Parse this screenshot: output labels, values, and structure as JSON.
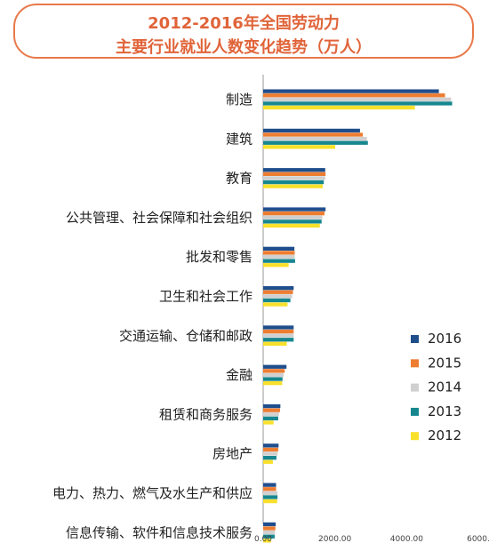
{
  "chart_data": {
    "type": "bar",
    "orientation": "horizontal",
    "title_line1": "2012-2016年全国劳动力",
    "title_line2": "主要行业就业人数变化趋势（万人）",
    "categories": [
      "制造",
      "建筑",
      "教育",
      "公共管理、社会保障和社会组织",
      "批发和零售",
      "卫生和社会工作",
      "交通运输、仓储和邮政",
      "金融",
      "租赁和商务服务",
      "房地产",
      "电力、热力、燃气及水生产和供应",
      "信息传输、软件和信息技术服务"
    ],
    "series": [
      {
        "name": "2016",
        "color": "#1f4e8c",
        "values": [
          4900,
          2700,
          1730,
          1740,
          870,
          850,
          850,
          650,
          480,
          430,
          360,
          350
        ]
      },
      {
        "name": "2015",
        "color": "#ed7d31",
        "values": [
          5070,
          2780,
          1740,
          1710,
          880,
          830,
          850,
          600,
          470,
          420,
          360,
          340
        ]
      },
      {
        "name": "2014",
        "color": "#d0d0d0",
        "values": [
          5240,
          2890,
          1730,
          1650,
          880,
          810,
          850,
          570,
          440,
          400,
          400,
          330
        ]
      },
      {
        "name": "2013",
        "color": "#16878f",
        "values": [
          5270,
          2920,
          1690,
          1630,
          890,
          760,
          850,
          540,
          420,
          370,
          400,
          320
        ]
      },
      {
        "name": "2012",
        "color": "#f9e02a",
        "values": [
          4230,
          2010,
          1660,
          1580,
          710,
          680,
          660,
          530,
          290,
          270,
          390,
          220
        ]
      }
    ],
    "xlim": [
      0,
      6000
    ],
    "x_ticks": [
      "0.00",
      "2000.00",
      "4000.00",
      "6000."
    ],
    "grid": false,
    "legend_position": "bottom-right"
  }
}
